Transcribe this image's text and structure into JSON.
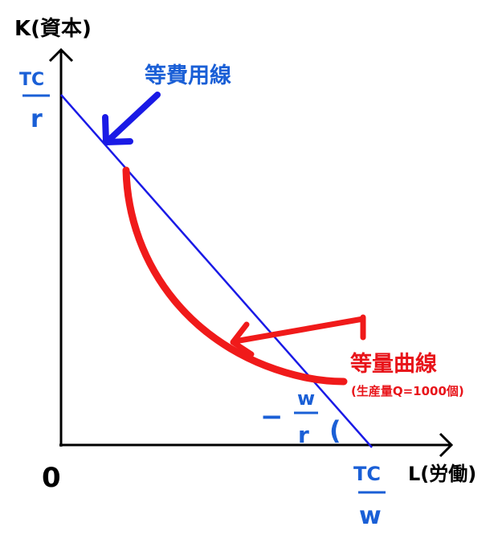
{
  "axes": {
    "y_label": "K(資本)",
    "x_label": "L(労働)",
    "origin_label": "0"
  },
  "isocost": {
    "name": "等費用線",
    "y_intercept": {
      "numerator": "TC",
      "denominator": "r"
    },
    "x_intercept": {
      "numerator": "TC",
      "denominator": "w"
    },
    "slope": {
      "sign": "−",
      "numerator": "w",
      "denominator": "r",
      "paren": "("
    }
  },
  "isoquant": {
    "name": "等量曲線",
    "note": "(生産量Q=1000個)"
  },
  "colors": {
    "axis": "#000000",
    "isocost_line": "#1a1ae6",
    "isocost_arrow": "#1a1ae6",
    "isoquant_curve": "#f01a1a",
    "blue_text": "#1a5fd6",
    "red_text": "#e8141a"
  }
}
